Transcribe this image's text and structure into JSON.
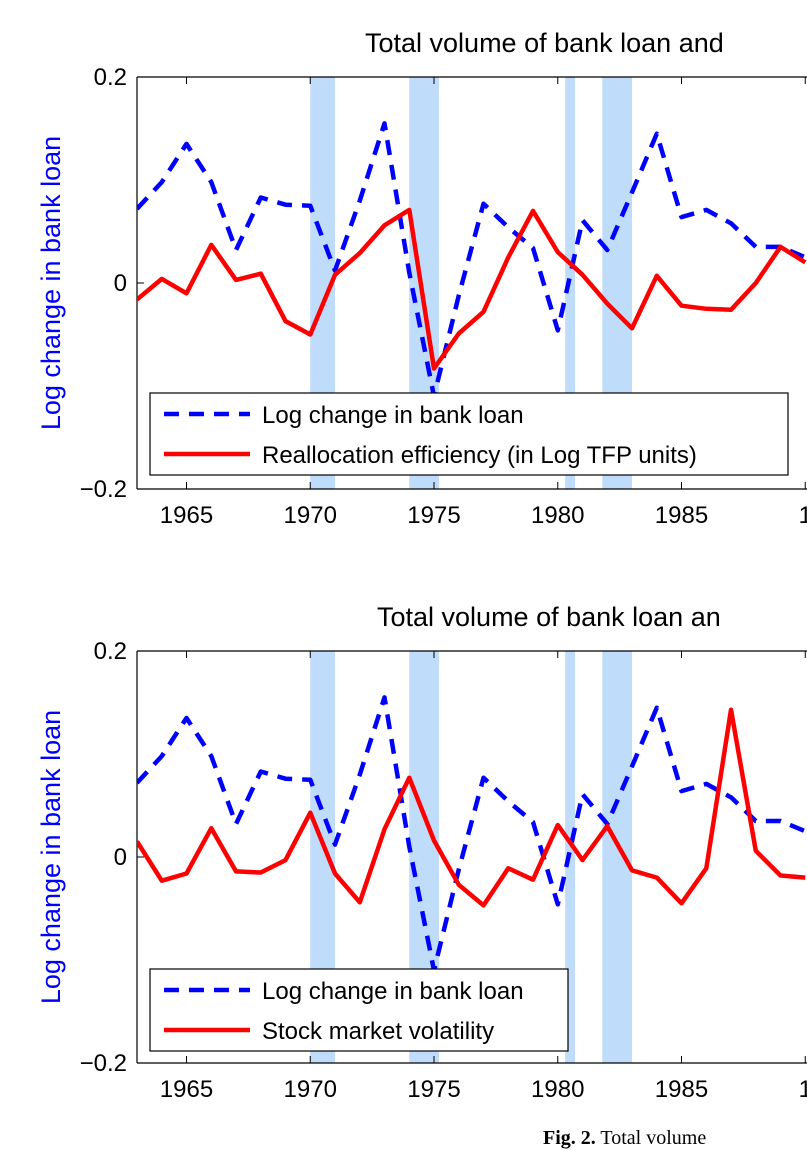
{
  "chart_data": [
    {
      "type": "line",
      "title": "Total volume of bank loan and",
      "ylabel": "Log change in bank loan",
      "xlim": [
        1963,
        1991
      ],
      "ylim": [
        -0.2,
        0.2
      ],
      "yticks": [
        "0.2",
        "0",
        "−0.2"
      ],
      "xticks": [
        "1965",
        "1970",
        "1975",
        "1980",
        "1985",
        "1"
      ],
      "recession_bands": [
        [
          1970.0,
          1971.0
        ],
        [
          1974.0,
          1975.2
        ],
        [
          1980.3,
          1980.7
        ],
        [
          1981.8,
          1983.0
        ]
      ],
      "legend": {
        "placement": "bottom-left",
        "entries": [
          "Log change in bank loan",
          "Reallocation efficiency (in Log TFP units)"
        ]
      },
      "series": [
        {
          "name": "Log change in bank loan",
          "color": "#0000ff",
          "style": "dashed",
          "x": [
            1963,
            1964,
            1965,
            1966,
            1967,
            1968,
            1969,
            1970,
            1971,
            1972,
            1973,
            1974,
            1975,
            1976,
            1977,
            1978,
            1979,
            1980,
            1981,
            1982,
            1983,
            1984,
            1985,
            1986,
            1987,
            1988,
            1989,
            1990
          ],
          "y": [
            0.072,
            0.098,
            0.135,
            0.098,
            0.032,
            0.083,
            0.076,
            0.075,
            0.012,
            0.08,
            0.155,
            0.01,
            -0.11,
            -0.012,
            0.077,
            0.054,
            0.034,
            -0.046,
            0.061,
            0.032,
            0.088,
            0.145,
            0.064,
            0.071,
            0.058,
            0.035,
            0.035,
            0.025
          ]
        },
        {
          "name": "Reallocation efficiency (in Log TFP units)",
          "color": "#ff0000",
          "style": "solid",
          "x": [
            1963,
            1964,
            1965,
            1966,
            1967,
            1968,
            1969,
            1970,
            1971,
            1972,
            1973,
            1974,
            1975,
            1976,
            1977,
            1978,
            1979,
            1980,
            1981,
            1982,
            1983,
            1984,
            1985,
            1986,
            1987,
            1988,
            1989,
            1990
          ],
          "y": [
            -0.016,
            0.004,
            -0.01,
            0.037,
            0.003,
            0.009,
            -0.037,
            -0.05,
            0.008,
            0.029,
            0.056,
            0.071,
            -0.083,
            -0.049,
            -0.028,
            0.025,
            0.07,
            0.03,
            0.008,
            -0.02,
            -0.044,
            0.007,
            -0.022,
            -0.025,
            -0.026,
            0.0,
            0.035,
            0.02
          ]
        }
      ]
    },
    {
      "type": "line",
      "title": "Total volume of bank loan an",
      "ylabel": "Log change in bank loan",
      "xlim": [
        1963,
        1991
      ],
      "ylim": [
        -0.2,
        0.2
      ],
      "yticks": [
        "0.2",
        "0",
        "−0.2"
      ],
      "xticks": [
        "1965",
        "1970",
        "1975",
        "1980",
        "1985",
        "1"
      ],
      "recession_bands": [
        [
          1970.0,
          1971.0
        ],
        [
          1974.0,
          1975.2
        ],
        [
          1980.3,
          1980.7
        ],
        [
          1981.8,
          1983.0
        ]
      ],
      "legend": {
        "placement": "bottom-left",
        "entries": [
          "Log change in bank loan",
          "Stock market volatility"
        ]
      },
      "series": [
        {
          "name": "Log change in bank loan",
          "color": "#0000ff",
          "style": "dashed",
          "x": [
            1963,
            1964,
            1965,
            1966,
            1967,
            1968,
            1969,
            1970,
            1971,
            1972,
            1973,
            1974,
            1975,
            1976,
            1977,
            1978,
            1979,
            1980,
            1981,
            1982,
            1983,
            1984,
            1985,
            1986,
            1987,
            1988,
            1989,
            1990
          ],
          "y": [
            0.072,
            0.098,
            0.135,
            0.098,
            0.032,
            0.083,
            0.076,
            0.075,
            0.012,
            0.08,
            0.155,
            0.01,
            -0.11,
            -0.012,
            0.077,
            0.054,
            0.034,
            -0.046,
            0.061,
            0.032,
            0.088,
            0.145,
            0.064,
            0.071,
            0.058,
            0.035,
            0.035,
            0.025
          ]
        },
        {
          "name": "Stock market volatility",
          "color": "#ff0000",
          "style": "solid",
          "x": [
            1963,
            1964,
            1965,
            1966,
            1967,
            1968,
            1969,
            1970,
            1971,
            1972,
            1973,
            1974,
            1975,
            1976,
            1977,
            1978,
            1979,
            1980,
            1981,
            1982,
            1983,
            1984,
            1985,
            1986,
            1987,
            1988,
            1989,
            1990
          ],
          "y": [
            0.015,
            -0.023,
            -0.016,
            0.028,
            -0.014,
            -0.015,
            -0.003,
            0.043,
            -0.016,
            -0.044,
            0.027,
            0.077,
            0.016,
            -0.027,
            -0.047,
            -0.011,
            -0.022,
            0.031,
            -0.003,
            0.03,
            -0.013,
            -0.02,
            -0.045,
            -0.011,
            0.143,
            0.006,
            -0.018,
            -0.02
          ]
        }
      ]
    }
  ],
  "caption": {
    "bold": "Fig. 2.",
    "text": " Total volume"
  }
}
